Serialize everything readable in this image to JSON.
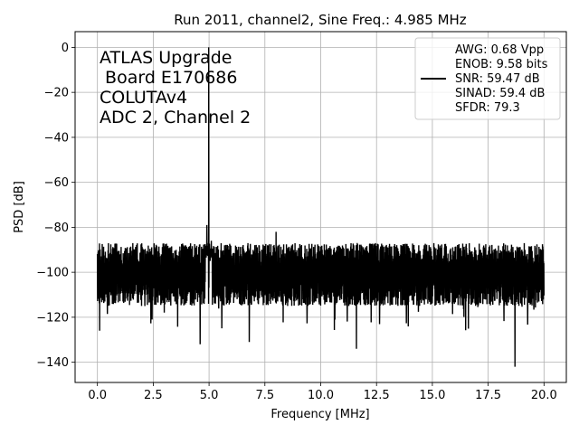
{
  "chart_data": {
    "type": "line",
    "title": "Run 2011, channel2, Sine Freq.: 4.985 MHz",
    "xlabel": "Frequency [MHz]",
    "ylabel": "PSD [dB]",
    "xlim": [
      -1.0,
      21.0
    ],
    "ylim": [
      -149,
      7
    ],
    "xticks": [
      0.0,
      2.5,
      5.0,
      7.5,
      10.0,
      12.5,
      15.0,
      17.5,
      20.0
    ],
    "xtick_labels": [
      "0.0",
      "2.5",
      "5.0",
      "7.5",
      "10.0",
      "12.5",
      "15.0",
      "17.5",
      "20.0"
    ],
    "yticks": [
      0,
      -20,
      -40,
      -60,
      -80,
      -100,
      -120,
      -140
    ],
    "ytick_labels": [
      "0",
      "−20",
      "−40",
      "−60",
      "−80",
      "−100",
      "−120",
      "−140"
    ],
    "grid": true,
    "line_color": "#000000",
    "annotation": [
      "ATLAS Upgrade",
      " Board E170686",
      "COLUTAv4",
      "ADC 2, Channel 2"
    ],
    "legend": {
      "placement": "upper right",
      "entries": [
        "AWG: 0.68 Vpp",
        "ENOB: 9.58 bits",
        "SNR: 59.47 dB",
        "SINAD: 59.4 dB",
        "SFDR: 79.3"
      ]
    },
    "series": [
      {
        "noise_floor_db": -100,
        "noise_max_db": -87,
        "noise_min_db": -126,
        "x_start": 0.0,
        "x_end": 20.0,
        "peaks": [
          {
            "x": 4.985,
            "y": 0
          },
          {
            "x": 4.9,
            "y": -79
          },
          {
            "x": 5.1,
            "y": -86
          },
          {
            "x": 8.0,
            "y": -82
          }
        ],
        "dips": [
          {
            "x": 0.1,
            "y": -126
          },
          {
            "x": 4.6,
            "y": -132
          },
          {
            "x": 6.8,
            "y": -131
          },
          {
            "x": 11.6,
            "y": -134
          },
          {
            "x": 18.7,
            "y": -142
          }
        ]
      }
    ]
  }
}
